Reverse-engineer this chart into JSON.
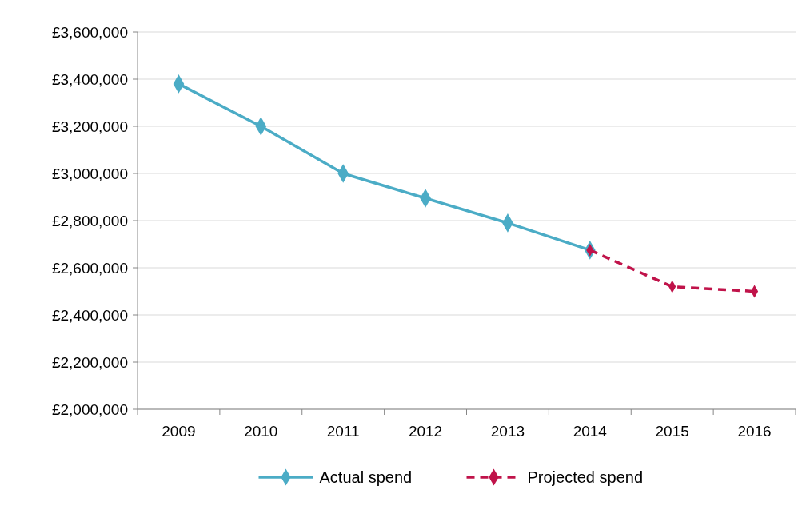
{
  "chart_data": {
    "type": "line",
    "categories": [
      "2009",
      "2010",
      "2011",
      "2012",
      "2013",
      "2014",
      "2015",
      "2016"
    ],
    "series": [
      {
        "name": "Actual spend",
        "color": "#4bacc6",
        "line_style": "solid",
        "values": [
          3380000,
          3200000,
          3000000,
          2895000,
          2790000,
          2675000,
          null,
          null
        ]
      },
      {
        "name": "Projected spend",
        "color": "#c0134a",
        "line_style": "dashed",
        "values": [
          null,
          null,
          null,
          null,
          null,
          2675000,
          2520000,
          2500000
        ]
      }
    ],
    "ylim": [
      2000000,
      3600000
    ],
    "yticks": [
      {
        "value": 2000000,
        "label": "£2,000,000"
      },
      {
        "value": 2200000,
        "label": "£2,200,000"
      },
      {
        "value": 2400000,
        "label": "£2,400,000"
      },
      {
        "value": 2600000,
        "label": "£2,600,000"
      },
      {
        "value": 2800000,
        "label": "£2,800,000"
      },
      {
        "value": 3000000,
        "label": "£3,000,000"
      },
      {
        "value": 3200000,
        "label": "£3,200,000"
      },
      {
        "value": 3400000,
        "label": "£3,400,000"
      },
      {
        "value": 3600000,
        "label": "£3,600,000"
      }
    ],
    "grid": "y",
    "legend": "bottom",
    "marker": "diamond"
  }
}
